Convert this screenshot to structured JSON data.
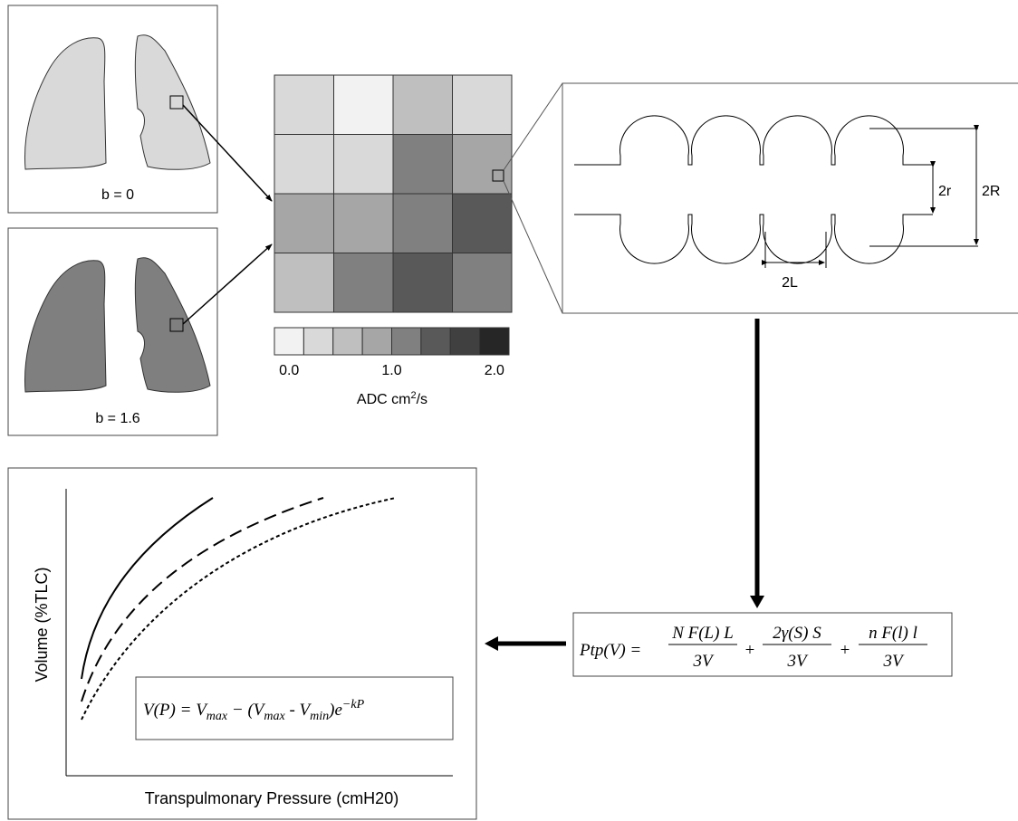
{
  "lung_panels": [
    {
      "label": "b = 0"
    },
    {
      "label": "b = 1.6"
    }
  ],
  "adc_map": {
    "cells": [
      [
        0.35,
        0.1,
        0.6,
        0.35
      ],
      [
        0.35,
        0.35,
        1.1,
        0.85
      ],
      [
        0.85,
        0.85,
        1.1,
        1.35
      ],
      [
        0.6,
        1.1,
        1.35,
        1.1
      ]
    ],
    "colorbar": {
      "range": [
        0,
        2
      ],
      "colors": [
        "#f2f2f2",
        "#d9d9d9",
        "#bfbfbf",
        "#a6a6a6",
        "#808080",
        "#595959",
        "#404040",
        "#262626"
      ],
      "ticks": [
        {
          "value": 0,
          "label": "0.0"
        },
        {
          "value": 1,
          "label": "1.0"
        },
        {
          "value": 2,
          "label": "2.0"
        }
      ],
      "label_parts": [
        "ADC cm",
        "2",
        "/s"
      ]
    }
  },
  "alveolar_model": {
    "inner_radius": "2r",
    "outer_radius": "2R",
    "length": "2L"
  },
  "pressure_equation": {
    "lhs": "Ptp(V) =",
    "operator": "+",
    "terms": [
      {
        "numerator": "N F(L) L",
        "denominator": "3V"
      },
      {
        "numerator": "2γ(S) S",
        "denominator": "3V"
      },
      {
        "numerator": "n F(l) l",
        "denominator": "3V"
      }
    ]
  },
  "volume_plot": {
    "y_label": "Volume (%TLC)",
    "x_label": "Transpulmonary Pressure (cmH20)",
    "equation_parts": [
      "V(P) = V",
      "max",
      " − (V",
      "max",
      " - V",
      "min",
      ")e",
      "−kP"
    ]
  }
}
